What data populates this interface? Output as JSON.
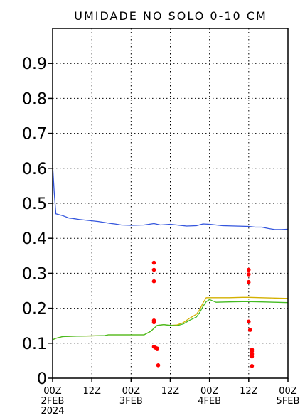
{
  "chart_data": {
    "type": "line",
    "title": "UMIDADE NO SOLO 0-10 CM",
    "xlim": [
      0,
      72
    ],
    "ylim": [
      0,
      1.0
    ],
    "grid": true,
    "yticks": [
      {
        "value": 0.0,
        "label": "0"
      },
      {
        "value": 0.1,
        "label": "0.1"
      },
      {
        "value": 0.2,
        "label": "0.2"
      },
      {
        "value": 0.3,
        "label": "0.3"
      },
      {
        "value": 0.4,
        "label": "0.4"
      },
      {
        "value": 0.5,
        "label": "0.5"
      },
      {
        "value": 0.6,
        "label": "0.6"
      },
      {
        "value": 0.7,
        "label": "0.7"
      },
      {
        "value": 0.8,
        "label": "0.8"
      },
      {
        "value": 0.9,
        "label": "0.9"
      }
    ],
    "xticks": [
      {
        "value": 0,
        "line1": "00Z",
        "line2": "2FEB",
        "line3": "2024"
      },
      {
        "value": 12,
        "line1": "12Z",
        "line2": "",
        "line3": ""
      },
      {
        "value": 24,
        "line1": "00Z",
        "line2": "3FEB",
        "line3": ""
      },
      {
        "value": 36,
        "line1": "12Z",
        "line2": "",
        "line3": ""
      },
      {
        "value": 48,
        "line1": "00Z",
        "line2": "4FEB",
        "line3": ""
      },
      {
        "value": 60,
        "line1": "12Z",
        "line2": "",
        "line3": ""
      },
      {
        "value": 72,
        "line1": "00Z",
        "line2": "5FEB",
        "line3": ""
      }
    ],
    "series": [
      {
        "color": "#3355dd",
        "x": [
          0,
          0.5,
          1,
          3,
          5,
          6,
          8,
          10,
          14,
          18,
          19,
          21,
          24,
          28,
          31,
          33,
          36,
          38,
          41,
          44,
          46,
          48,
          52,
          56,
          60,
          62,
          64,
          66,
          68,
          70,
          72
        ],
        "y": [
          0.61,
          0.53,
          0.47,
          0.465,
          0.458,
          0.457,
          0.454,
          0.452,
          0.448,
          0.442,
          0.441,
          0.438,
          0.437,
          0.438,
          0.442,
          0.438,
          0.44,
          0.438,
          0.435,
          0.436,
          0.441,
          0.44,
          0.436,
          0.435,
          0.434,
          0.432,
          0.432,
          0.428,
          0.425,
          0.425,
          0.426
        ]
      },
      {
        "color": "#d4b000",
        "x": [
          0,
          1,
          3,
          6,
          12,
          16,
          17,
          20,
          24,
          28,
          30,
          32,
          34,
          36,
          38,
          40,
          42,
          44,
          45,
          46,
          47,
          48,
          50,
          54,
          58,
          60,
          64,
          68,
          72
        ],
        "y": [
          0.11,
          0.114,
          0.119,
          0.12,
          0.121,
          0.122,
          0.124,
          0.124,
          0.124,
          0.124,
          0.134,
          0.151,
          0.153,
          0.151,
          0.152,
          0.159,
          0.172,
          0.183,
          0.196,
          0.215,
          0.23,
          0.23,
          0.23,
          0.23,
          0.231,
          0.231,
          0.23,
          0.229,
          0.228
        ]
      },
      {
        "color": "#44bb22",
        "x": [
          0,
          1,
          3,
          6,
          12,
          16,
          17,
          20,
          24,
          28,
          30,
          32,
          34,
          36,
          38,
          40,
          42,
          44,
          45,
          46,
          47,
          48,
          50,
          54,
          58,
          60,
          64,
          68,
          72
        ],
        "y": [
          0.11,
          0.114,
          0.119,
          0.12,
          0.121,
          0.122,
          0.124,
          0.124,
          0.124,
          0.124,
          0.134,
          0.151,
          0.153,
          0.151,
          0.15,
          0.155,
          0.166,
          0.175,
          0.188,
          0.205,
          0.219,
          0.225,
          0.217,
          0.218,
          0.219,
          0.219,
          0.218,
          0.217,
          0.216
        ]
      }
    ],
    "points": {
      "color": "#ff0000",
      "x": [
        31,
        31,
        31,
        31,
        31,
        31,
        31.5,
        32,
        32,
        32.3,
        60,
        60,
        60,
        60,
        60.4,
        61,
        61,
        61,
        61,
        61,
        61
      ],
      "y": [
        0.33,
        0.31,
        0.277,
        0.165,
        0.16,
        0.09,
        0.087,
        0.085,
        0.083,
        0.037,
        0.31,
        0.297,
        0.275,
        0.162,
        0.138,
        0.082,
        0.077,
        0.07,
        0.068,
        0.062,
        0.035
      ]
    }
  }
}
